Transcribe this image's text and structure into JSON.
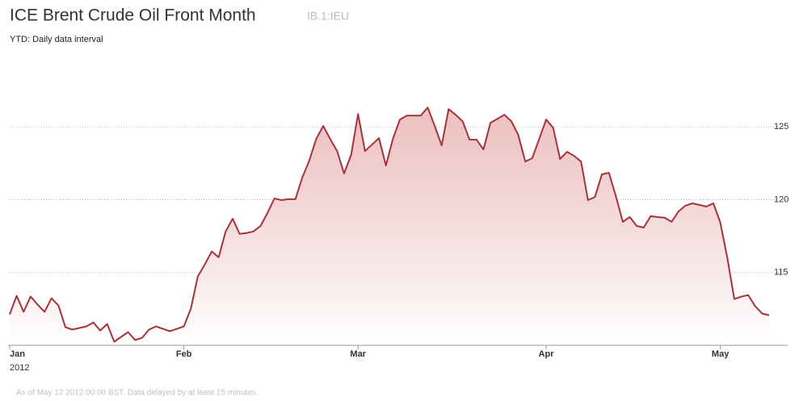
{
  "chart_data": {
    "type": "line",
    "title": "ICE Brent Crude Oil Front Month",
    "ticker": "IB.1:IEU",
    "subtitle": "YTD: Daily data interval",
    "x_sublabel": "2012",
    "footnote": "As of May 12 2012 00:00 BST. Data delayed by at least 15 minutes.",
    "color": "#a8323a",
    "grid": true,
    "ylim": [
      110,
      129.5
    ],
    "yticks": [
      115,
      120,
      125
    ],
    "categories": [
      "Jan",
      null,
      null,
      null,
      null,
      null,
      null,
      null,
      null,
      null,
      null,
      null,
      null,
      null,
      null,
      null,
      null,
      null,
      null,
      null,
      null,
      null,
      null,
      null,
      null,
      "Feb",
      null,
      null,
      null,
      null,
      null,
      null,
      null,
      null,
      null,
      null,
      null,
      null,
      null,
      null,
      null,
      null,
      null,
      null,
      null,
      null,
      null,
      null,
      null,
      null,
      "Mar",
      null,
      null,
      null,
      null,
      null,
      null,
      null,
      null,
      null,
      null,
      null,
      null,
      null,
      null,
      null,
      null,
      null,
      null,
      null,
      null,
      null,
      null,
      null,
      null,
      null,
      null,
      "Apr",
      null,
      null,
      null,
      null,
      null,
      null,
      null,
      null,
      null,
      null,
      null,
      null,
      null,
      null,
      null,
      null,
      null,
      null,
      null,
      null,
      null,
      null,
      null,
      null,
      "May",
      null,
      null,
      null,
      null,
      null,
      null,
      null
    ],
    "values": [
      112.13,
      113.4,
      112.3,
      113.35,
      112.8,
      112.3,
      113.23,
      112.73,
      111.24,
      111.08,
      111.19,
      111.3,
      111.57,
      111.02,
      111.46,
      110.25,
      110.58,
      110.91,
      110.36,
      110.52,
      111.08,
      111.3,
      111.13,
      110.97,
      111.13,
      111.3,
      112.51,
      114.72,
      115.55,
      116.44,
      116.05,
      117.82,
      118.7,
      117.65,
      117.71,
      117.82,
      118.2,
      119.09,
      120.08,
      119.97,
      120.03,
      120.03,
      121.52,
      122.68,
      124.17,
      125.06,
      124.17,
      123.34,
      121.8,
      123.07,
      125.88,
      123.34,
      123.78,
      124.23,
      122.35,
      124.17,
      125.5,
      125.77,
      125.77,
      125.77,
      126.33,
      125.06,
      123.73,
      126.22,
      125.83,
      125.39,
      124.12,
      124.12,
      123.45,
      125.28,
      125.55,
      125.83,
      125.39,
      124.45,
      122.62,
      122.85,
      124.17,
      125.5,
      124.94,
      122.79,
      123.29,
      123.01,
      122.62,
      119.97,
      120.19,
      121.74,
      121.85,
      120.25,
      118.48,
      118.81,
      118.2,
      118.09,
      118.87,
      118.81,
      118.76,
      118.48,
      119.2,
      119.59,
      119.75,
      119.64,
      119.53,
      119.75,
      118.43,
      116.0,
      113.18,
      113.34,
      113.45,
      112.68,
      112.18,
      112.07
    ]
  }
}
